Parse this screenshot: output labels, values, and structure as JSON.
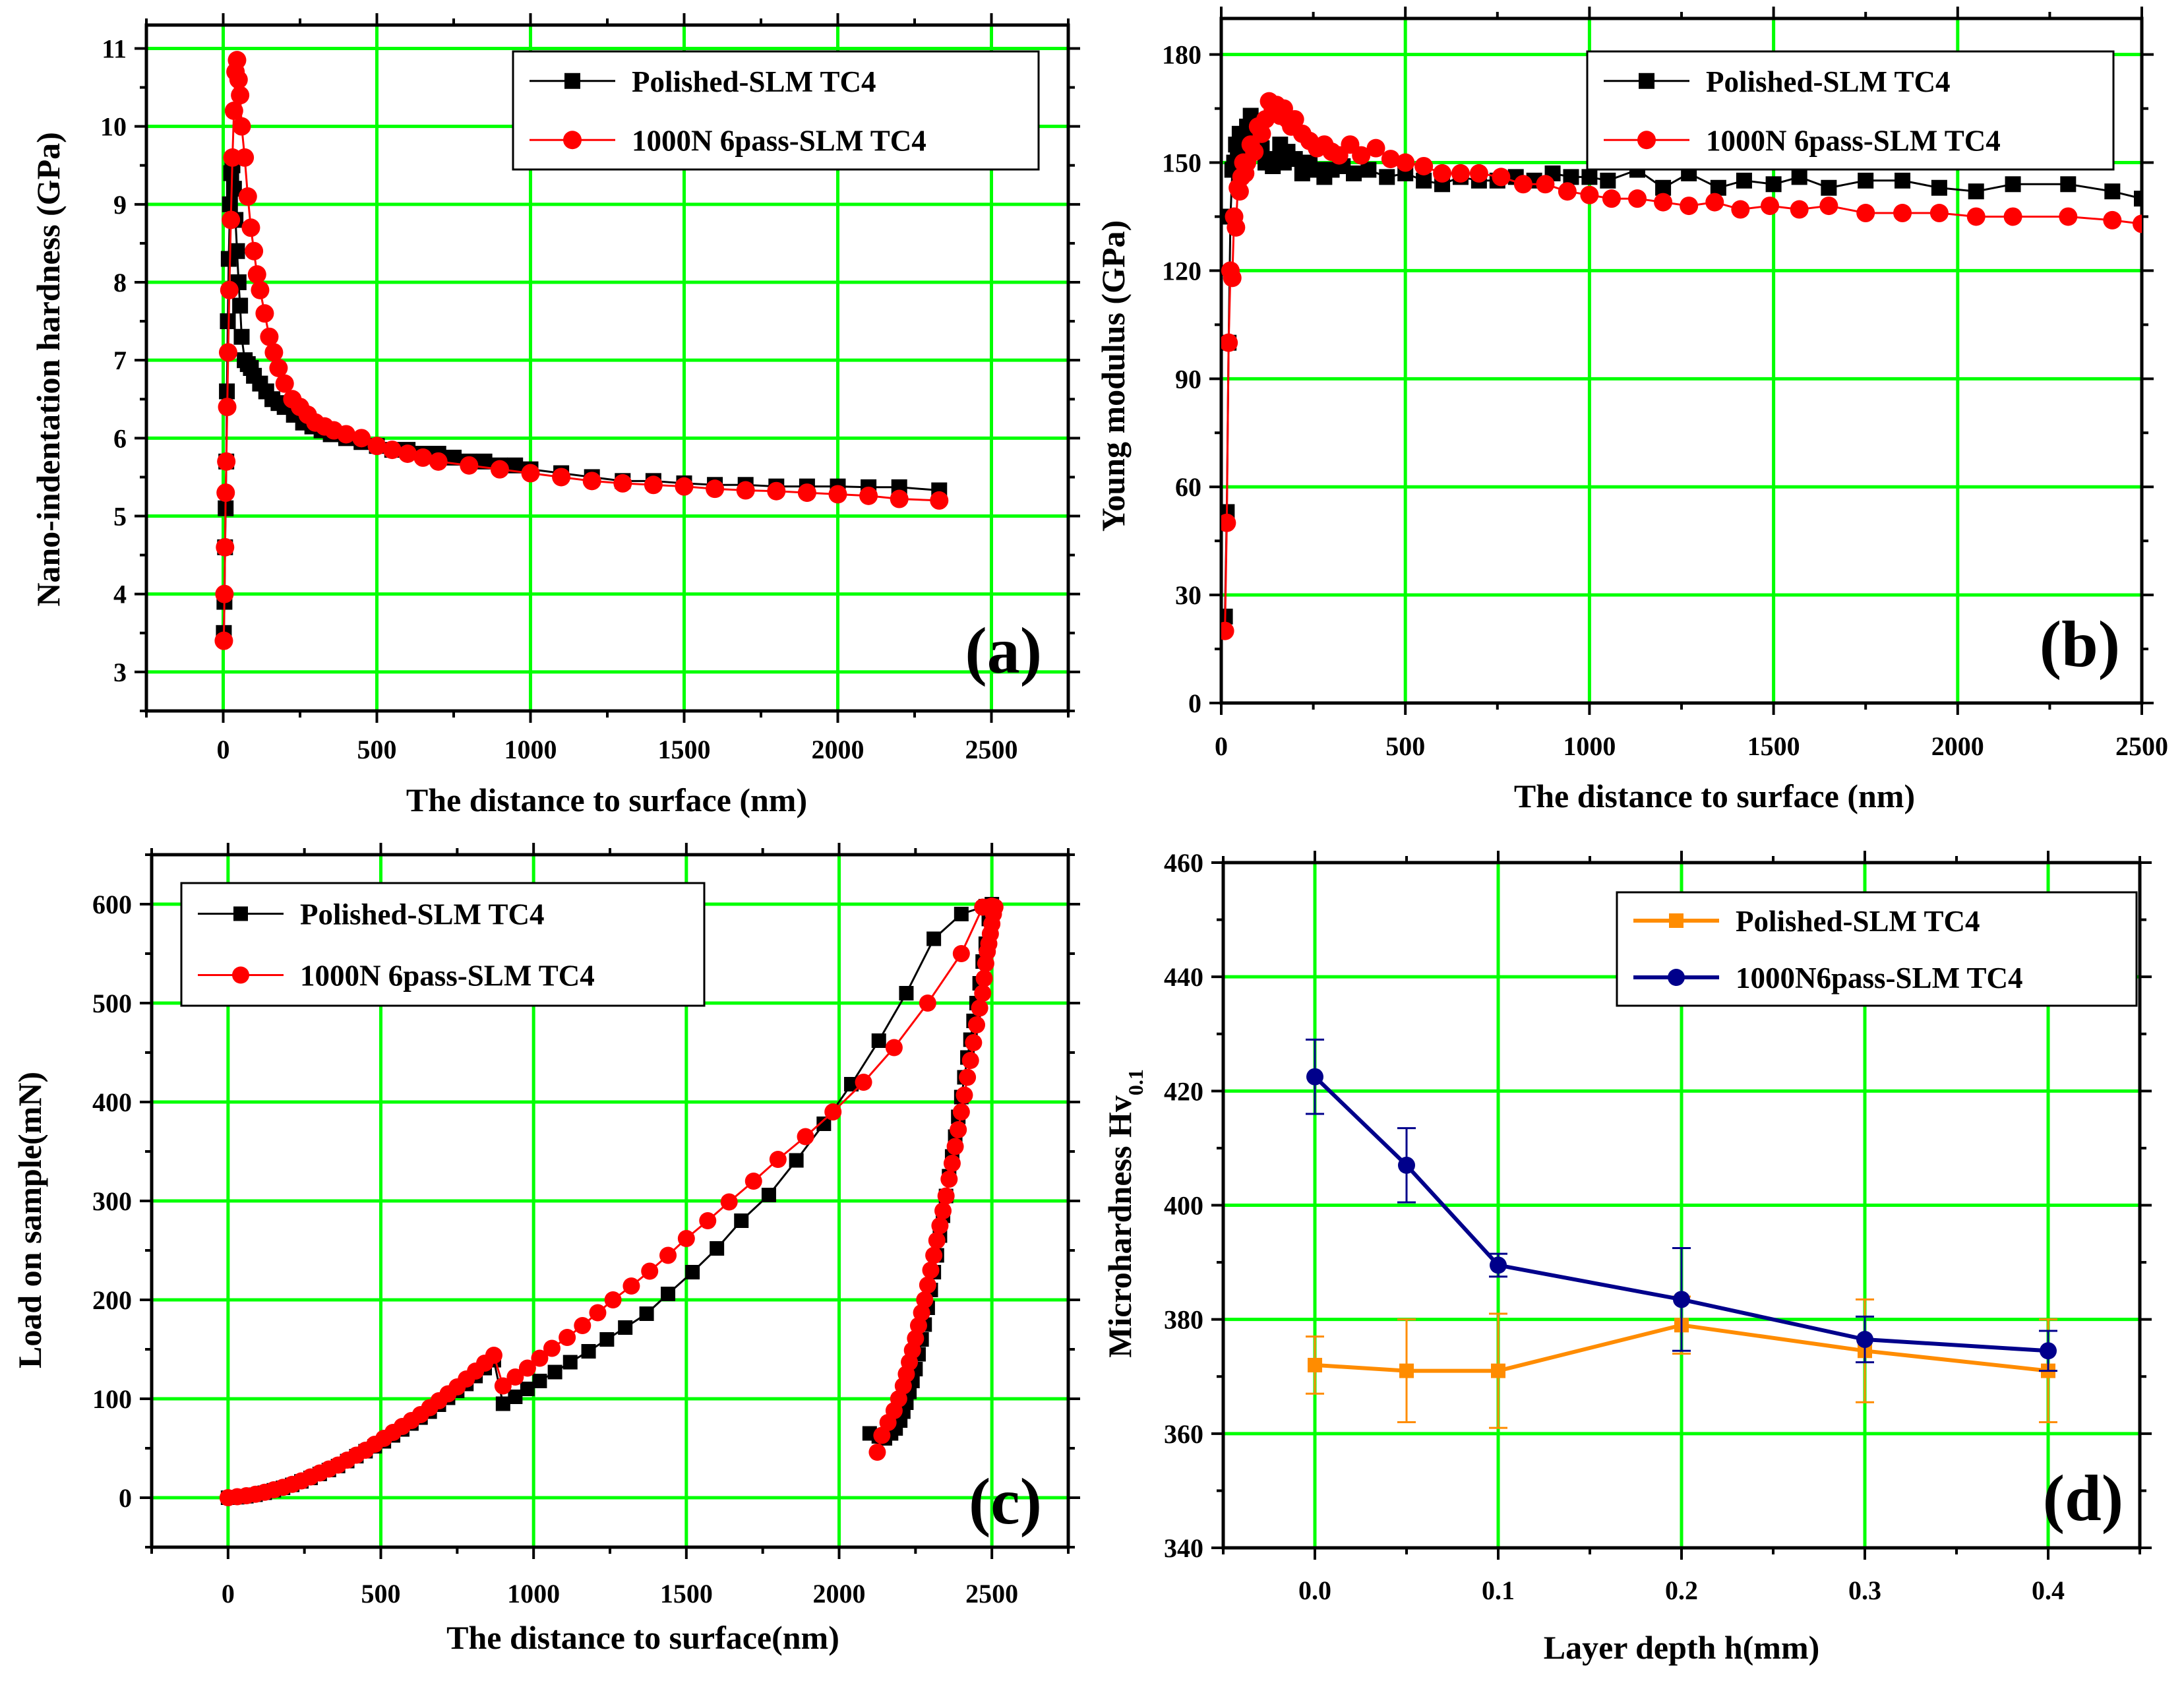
{
  "chart_data": [
    {
      "type": "line",
      "panel_label": "(a)",
      "xlabel": "The distance to surface (nm)",
      "ylabel": "Nano-indentation hardness (GPa)",
      "xlim": [
        -250,
        2750
      ],
      "ylim": [
        2.5,
        11.3
      ],
      "xticks": [
        "0",
        "500",
        "1000",
        "1500",
        "2000",
        "2500"
      ],
      "yticks": [
        "3",
        "4",
        "5",
        "6",
        "7",
        "8",
        "9",
        "10",
        "11"
      ],
      "grid": true,
      "legend_position": "top-right",
      "series": [
        {
          "name": "Polished-SLM TC4",
          "color": "#000000",
          "marker": "square",
          "x": [
            2,
            4,
            6,
            8,
            10,
            12,
            15,
            18,
            22,
            26,
            30,
            35,
            40,
            45,
            50,
            55,
            60,
            70,
            80,
            90,
            100,
            120,
            140,
            160,
            180,
            200,
            230,
            260,
            290,
            320,
            350,
            400,
            450,
            500,
            550,
            600,
            650,
            700,
            750,
            800,
            850,
            900,
            950,
            1000,
            1100,
            1200,
            1300,
            1400,
            1500,
            1600,
            1700,
            1800,
            1900,
            2000,
            2100,
            2200,
            2330
          ],
          "y": [
            3.5,
            3.9,
            4.6,
            5.1,
            5.7,
            6.6,
            7.5,
            8.3,
            9.0,
            9.4,
            9.5,
            9.2,
            8.8,
            8.4,
            8.0,
            7.7,
            7.3,
            7.0,
            6.95,
            6.9,
            6.8,
            6.7,
            6.6,
            6.5,
            6.45,
            6.4,
            6.3,
            6.2,
            6.15,
            6.1,
            6.05,
            6.0,
            5.95,
            5.9,
            5.85,
            5.85,
            5.8,
            5.8,
            5.75,
            5.7,
            5.7,
            5.65,
            5.65,
            5.6,
            5.55,
            5.5,
            5.45,
            5.45,
            5.42,
            5.4,
            5.4,
            5.38,
            5.38,
            5.38,
            5.37,
            5.37,
            5.33
          ]
        },
        {
          "name": "1000N 6pass-SLM TC4",
          "color": "#ff0000",
          "marker": "circle",
          "x": [
            2,
            4,
            6,
            8,
            10,
            13,
            16,
            20,
            25,
            30,
            35,
            40,
            45,
            50,
            55,
            60,
            70,
            80,
            90,
            100,
            110,
            120,
            135,
            150,
            165,
            180,
            200,
            225,
            250,
            275,
            300,
            330,
            360,
            400,
            450,
            500,
            550,
            600,
            650,
            700,
            800,
            900,
            1000,
            1100,
            1200,
            1300,
            1400,
            1500,
            1600,
            1700,
            1800,
            1900,
            2000,
            2100,
            2200,
            2330
          ],
          "y": [
            3.4,
            4.0,
            4.6,
            5.3,
            5.7,
            6.4,
            7.1,
            7.9,
            8.8,
            9.6,
            10.2,
            10.7,
            10.85,
            10.6,
            10.4,
            10.0,
            9.6,
            9.1,
            8.7,
            8.4,
            8.1,
            7.9,
            7.6,
            7.3,
            7.1,
            6.9,
            6.7,
            6.5,
            6.4,
            6.3,
            6.2,
            6.15,
            6.1,
            6.05,
            6.0,
            5.9,
            5.85,
            5.8,
            5.75,
            5.7,
            5.65,
            5.6,
            5.55,
            5.5,
            5.45,
            5.42,
            5.4,
            5.38,
            5.35,
            5.33,
            5.32,
            5.3,
            5.28,
            5.26,
            5.22,
            5.2
          ]
        }
      ]
    },
    {
      "type": "line",
      "panel_label": "(b)",
      "xlabel": "The distance to surface (nm)",
      "ylabel": "Young modulus (GPa)",
      "xlim": [
        0,
        2500
      ],
      "ylim": [
        0,
        190
      ],
      "xticks": [
        "0",
        "500",
        "1000",
        "1500",
        "2000",
        "2500"
      ],
      "yticks": [
        "0",
        "30",
        "60",
        "90",
        "120",
        "150",
        "180"
      ],
      "grid": true,
      "legend_position": "top-right",
      "series": [
        {
          "name": "Polished-SLM TC4",
          "color": "#000000",
          "marker": "square",
          "x": [
            10,
            15,
            20,
            25,
            30,
            35,
            40,
            45,
            50,
            55,
            60,
            70,
            80,
            90,
            100,
            110,
            120,
            130,
            140,
            150,
            160,
            170,
            180,
            200,
            220,
            240,
            260,
            280,
            300,
            330,
            360,
            400,
            450,
            500,
            550,
            600,
            650,
            700,
            750,
            800,
            850,
            900,
            950,
            1000,
            1050,
            1130,
            1200,
            1270,
            1350,
            1420,
            1500,
            1570,
            1650,
            1750,
            1850,
            1950,
            2050,
            2150,
            2300,
            2420,
            2500
          ],
          "y": [
            24,
            53,
            100,
            135,
            148,
            150,
            155,
            153,
            158,
            152,
            156,
            160,
            163,
            160,
            158,
            154,
            150,
            150,
            149,
            151,
            155,
            150,
            153,
            151,
            147,
            150,
            148,
            146,
            148,
            149,
            147,
            148,
            146,
            147,
            145,
            144,
            146,
            145,
            145,
            146,
            145,
            147,
            146,
            146,
            145,
            148,
            143,
            147,
            143,
            145,
            144,
            146,
            143,
            145,
            145,
            143,
            142,
            144,
            144,
            142,
            140
          ]
        },
        {
          "name": "1000N 6pass-SLM TC4",
          "color": "#ff0000",
          "marker": "circle",
          "x": [
            10,
            15,
            20,
            25,
            30,
            35,
            40,
            45,
            50,
            55,
            60,
            65,
            70,
            80,
            90,
            100,
            110,
            120,
            130,
            140,
            150,
            160,
            170,
            180,
            190,
            200,
            220,
            240,
            260,
            280,
            300,
            320,
            350,
            380,
            420,
            460,
            500,
            550,
            600,
            650,
            700,
            760,
            820,
            880,
            940,
            1000,
            1060,
            1130,
            1200,
            1270,
            1340,
            1410,
            1490,
            1570,
            1650,
            1750,
            1850,
            1950,
            2050,
            2150,
            2300,
            2420,
            2500
          ],
          "y": [
            20,
            50,
            100,
            120,
            118,
            135,
            132,
            143,
            142,
            146,
            150,
            147,
            150,
            155,
            153,
            160,
            158,
            162,
            167,
            165,
            166,
            163,
            165,
            162,
            160,
            162,
            158,
            156,
            154,
            155,
            153,
            152,
            155,
            152,
            154,
            151,
            150,
            149,
            147,
            147,
            147,
            146,
            144,
            144,
            142,
            141,
            140,
            140,
            139,
            138,
            139,
            137,
            138,
            137,
            138,
            136,
            136,
            136,
            135,
            135,
            135,
            134,
            133
          ]
        }
      ]
    },
    {
      "type": "line",
      "panel_label": "(c)",
      "xlabel": "The distance to surface(nm)",
      "ylabel": "Load on sample(mN)",
      "xlim": [
        -250,
        2750
      ],
      "ylim": [
        -50,
        650
      ],
      "xticks": [
        "0",
        "500",
        "1000",
        "1500",
        "2000",
        "2500"
      ],
      "yticks": [
        "0",
        "100",
        "200",
        "300",
        "400",
        "500",
        "600"
      ],
      "grid": true,
      "legend_position": "top-left",
      "series": [
        {
          "name": "Polished-SLM TC4",
          "color": "#000000",
          "marker": "square",
          "x": [
            0,
            30,
            60,
            90,
            120,
            150,
            180,
            210,
            240,
            270,
            300,
            330,
            360,
            390,
            420,
            450,
            480,
            510,
            540,
            570,
            600,
            630,
            660,
            690,
            720,
            750,
            780,
            810,
            840,
            870,
            900,
            940,
            980,
            1020,
            1070,
            1120,
            1180,
            1240,
            1300,
            1370,
            1440,
            1520,
            1600,
            1680,
            1770,
            1860,
            1950,
            2040,
            2130,
            2220,
            2310,
            2400,
            2480,
            2500,
            2490,
            2480,
            2470,
            2460,
            2450,
            2440,
            2430,
            2420,
            2410,
            2400,
            2390,
            2380,
            2370,
            2360,
            2350,
            2340,
            2330,
            2320,
            2310,
            2300,
            2290,
            2280,
            2270,
            2260,
            2250,
            2240,
            2230,
            2220,
            2210,
            2200,
            2185,
            2170,
            2150,
            2130,
            2100
          ],
          "y": [
            0,
            0.5,
            1.5,
            3,
            5,
            7.5,
            10,
            13,
            16.5,
            20,
            24,
            28,
            32,
            37,
            42,
            47,
            52,
            57,
            63,
            69,
            75,
            81,
            87,
            94,
            101,
            108,
            115,
            123,
            131,
            139,
            95,
            102,
            110,
            118,
            127,
            137,
            148,
            160,
            172,
            186,
            206,
            228,
            252,
            280,
            306,
            341,
            378,
            418,
            462,
            510,
            565,
            590,
            598,
            600,
            585,
            560,
            542,
            520,
            500,
            482,
            463,
            445,
            425,
            405,
            385,
            365,
            345,
            325,
            305,
            285,
            265,
            245,
            228,
            210,
            192,
            175,
            160,
            145,
            130,
            118,
            107,
            96,
            87,
            78,
            70,
            65,
            60,
            62,
            65
          ]
        },
        {
          "name": "1000N 6pass-SLM TC4",
          "color": "#ff0000",
          "marker": "circle",
          "x": [
            0,
            30,
            60,
            90,
            120,
            150,
            180,
            210,
            240,
            270,
            300,
            330,
            360,
            390,
            420,
            450,
            480,
            510,
            540,
            570,
            600,
            630,
            660,
            690,
            720,
            750,
            780,
            810,
            840,
            870,
            900,
            940,
            980,
            1020,
            1060,
            1110,
            1160,
            1210,
            1260,
            1320,
            1380,
            1440,
            1500,
            1570,
            1640,
            1720,
            1800,
            1890,
            1980,
            2080,
            2180,
            2290,
            2400,
            2470,
            2490,
            2500,
            2510,
            2505,
            2500,
            2495,
            2490,
            2485,
            2480,
            2475,
            2470,
            2460,
            2450,
            2440,
            2430,
            2420,
            2410,
            2400,
            2390,
            2380,
            2370,
            2360,
            2350,
            2340,
            2330,
            2320,
            2310,
            2300,
            2290,
            2280,
            2270,
            2260,
            2250,
            2240,
            2230,
            2220,
            2210,
            2195,
            2180,
            2160,
            2140,
            2125
          ],
          "y": [
            0,
            1,
            2,
            3.5,
            5.5,
            8,
            10.5,
            13.5,
            17,
            21,
            25,
            29,
            33,
            38,
            43,
            48,
            54,
            60,
            66,
            72,
            78,
            84,
            91,
            98,
            105,
            112,
            120,
            128,
            136,
            144,
            113,
            122,
            131,
            141,
            151,
            162,
            174,
            187,
            200,
            214,
            229,
            245,
            262,
            280,
            299,
            320,
            342,
            365,
            390,
            420,
            455,
            500,
            550,
            597,
            597,
            598,
            597,
            590,
            580,
            570,
            560,
            552,
            540,
            525,
            510,
            495,
            478,
            460,
            442,
            425,
            407,
            390,
            372,
            355,
            338,
            322,
            305,
            290,
            275,
            260,
            245,
            230,
            215,
            200,
            187,
            174,
            161,
            149,
            137,
            125,
            113,
            100,
            88,
            76,
            63,
            46
          ]
        }
      ]
    },
    {
      "type": "line",
      "panel_label": "(d)",
      "xlabel": "Layer depth h(mm)",
      "ylabel": "Microhardness Hv",
      "ylabel_subscript": "0.1",
      "xlim": [
        -0.05,
        0.45
      ],
      "ylim": [
        340,
        460
      ],
      "xticks": [
        "0.0",
        "0.1",
        "0.2",
        "0.3",
        "0.4"
      ],
      "yticks": [
        "340",
        "360",
        "380",
        "400",
        "420",
        "440",
        "460"
      ],
      "grid": true,
      "legend_position": "top-right",
      "series": [
        {
          "name": "Polished-SLM TC4",
          "color": "#ff8c00",
          "marker": "square",
          "x": [
            0.0,
            0.05,
            0.1,
            0.2,
            0.3,
            0.4
          ],
          "y": [
            372,
            371,
            371,
            379,
            374.5,
            371
          ],
          "err": [
            5,
            9,
            10,
            5,
            9,
            9
          ]
        },
        {
          "name": "1000N6pass-SLM TC4",
          "color": "#00008b",
          "marker": "circle",
          "x": [
            0.0,
            0.05,
            0.1,
            0.2,
            0.3,
            0.4
          ],
          "y": [
            422.5,
            407,
            389.5,
            383.5,
            376.5,
            374.5
          ],
          "err": [
            6.5,
            6.5,
            2,
            9,
            4,
            3.5
          ]
        }
      ]
    }
  ]
}
